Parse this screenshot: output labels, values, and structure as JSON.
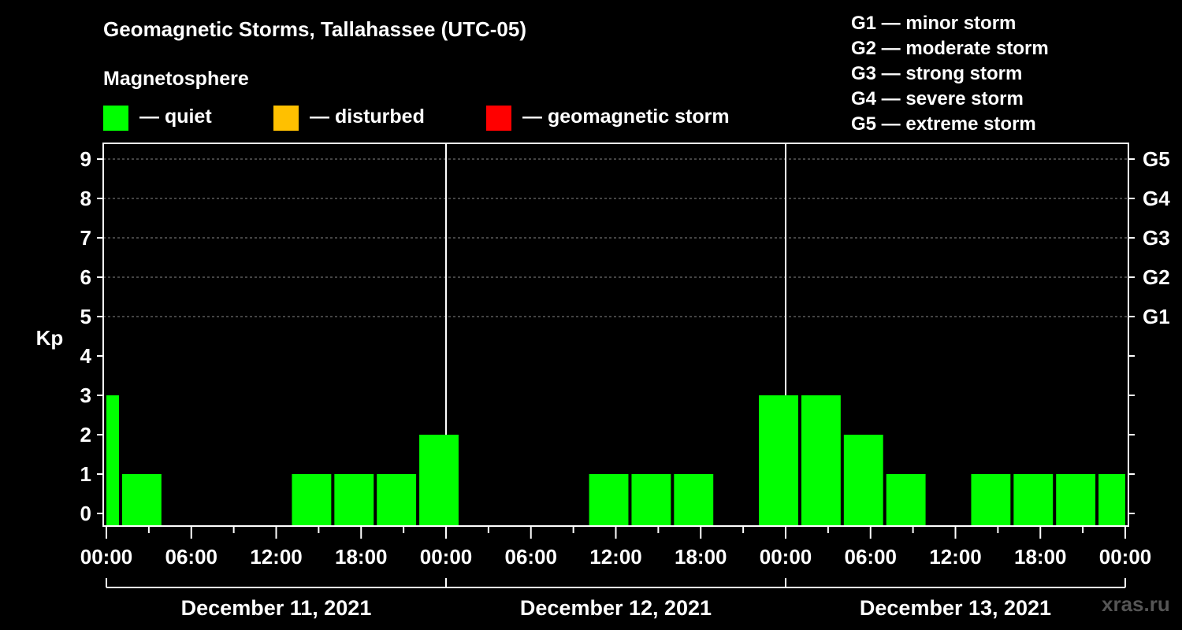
{
  "legend": {
    "heading": "Magnetosphere",
    "items": [
      {
        "label": "— quiet",
        "color": "#00ff00"
      },
      {
        "label": "— disturbed",
        "color": "#ffc000"
      },
      {
        "label": "— geomagnetic storm",
        "color": "#ff0000"
      }
    ]
  },
  "storm_levels": [
    "G1 — minor storm",
    "G2 — moderate storm",
    "G3 — strong storm",
    "G4 — severe storm",
    "G5 — extreme storm"
  ],
  "watermark": "xras.ru",
  "chart_data": {
    "type": "bar",
    "title": "Geomagnetic Storms, Tallahassee (UTC-05)",
    "ylabel": "Kp",
    "ylim": [
      0,
      9
    ],
    "y_ticks": [
      0,
      1,
      2,
      3,
      4,
      5,
      6,
      7,
      8,
      9
    ],
    "right_axis_labels": [
      {
        "kp": 5,
        "label": "G1"
      },
      {
        "kp": 6,
        "label": "G2"
      },
      {
        "kp": 7,
        "label": "G3"
      },
      {
        "kp": 8,
        "label": "G4"
      },
      {
        "kp": 9,
        "label": "G5"
      }
    ],
    "x_range_hours": [
      0,
      72
    ],
    "x_tick_labels": [
      "00:00",
      "06:00",
      "12:00",
      "18:00",
      "00:00",
      "06:00",
      "12:00",
      "18:00",
      "00:00",
      "06:00",
      "12:00",
      "18:00",
      "00:00"
    ],
    "dates": [
      "December 11, 2021",
      "December 12, 2021",
      "December 13, 2021"
    ],
    "grid": true,
    "bars": [
      {
        "start": 0,
        "end": 1,
        "kp": 3
      },
      {
        "start": 1,
        "end": 4,
        "kp": 1
      },
      {
        "start": 4,
        "end": 7,
        "kp": 0
      },
      {
        "start": 7,
        "end": 10,
        "kp": 0
      },
      {
        "start": 10,
        "end": 13,
        "kp": 0
      },
      {
        "start": 13,
        "end": 16,
        "kp": 1
      },
      {
        "start": 16,
        "end": 19,
        "kp": 1
      },
      {
        "start": 19,
        "end": 22,
        "kp": 1
      },
      {
        "start": 22,
        "end": 25,
        "kp": 2
      },
      {
        "start": 25,
        "end": 28,
        "kp": 0
      },
      {
        "start": 28,
        "end": 31,
        "kp": 0
      },
      {
        "start": 31,
        "end": 34,
        "kp": 0
      },
      {
        "start": 34,
        "end": 37,
        "kp": 1
      },
      {
        "start": 37,
        "end": 40,
        "kp": 1
      },
      {
        "start": 40,
        "end": 43,
        "kp": 1
      },
      {
        "start": 43,
        "end": 46,
        "kp": 0
      },
      {
        "start": 46,
        "end": 49,
        "kp": 3
      },
      {
        "start": 49,
        "end": 52,
        "kp": 3
      },
      {
        "start": 52,
        "end": 55,
        "kp": 2
      },
      {
        "start": 55,
        "end": 58,
        "kp": 1
      },
      {
        "start": 58,
        "end": 61,
        "kp": 0
      },
      {
        "start": 61,
        "end": 64,
        "kp": 1
      },
      {
        "start": 64,
        "end": 67,
        "kp": 1
      },
      {
        "start": 67,
        "end": 70,
        "kp": 1
      },
      {
        "start": 70,
        "end": 72,
        "kp": 1
      }
    ]
  }
}
